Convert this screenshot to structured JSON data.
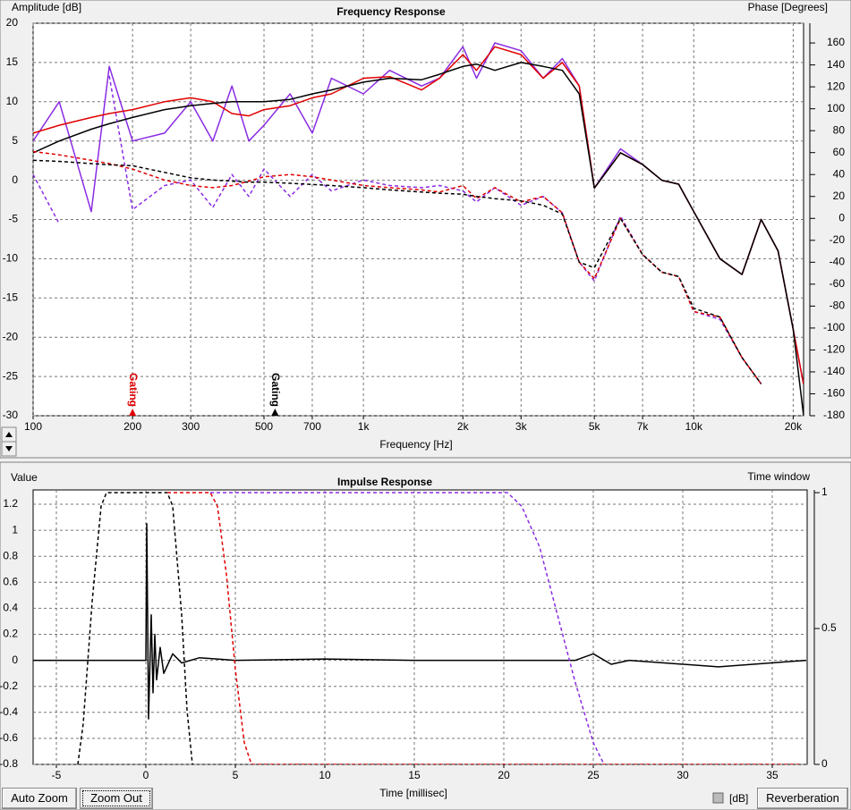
{
  "chart_data": [
    {
      "type": "line",
      "title": "Frequency Response",
      "y_label": "Amplitude [dB]",
      "y2_label": "Phase [Degrees]",
      "x_label": "Frequency [Hz]",
      "xscale": "log",
      "grid": true,
      "x": [
        100,
        120,
        150,
        170,
        200,
        250,
        300,
        350,
        400,
        450,
        500,
        600,
        700,
        800,
        1000,
        1200,
        1500,
        1700,
        2000,
        2200,
        2500,
        3000,
        3500,
        4000,
        4500,
        5000,
        6000,
        7000,
        8000,
        9000,
        10000,
        12000,
        14000,
        16000,
        18000,
        20000,
        21500
      ],
      "xlim": [
        100,
        21500
      ],
      "xticks": [
        100,
        200,
        300,
        500,
        700,
        {
          "value": 1000,
          "label": "1k"
        },
        {
          "value": 2000,
          "label": "2k"
        },
        {
          "value": 3000,
          "label": "3k"
        },
        {
          "value": 5000,
          "label": "5k"
        },
        {
          "value": 7000,
          "label": "7k"
        },
        {
          "value": 10000,
          "label": "10k"
        },
        {
          "value": 20000,
          "label": "20k"
        }
      ],
      "ylim": [
        -30,
        20
      ],
      "yticks": [
        -30,
        -25,
        -20,
        -15,
        -10,
        -5,
        0,
        5,
        10,
        15,
        20
      ],
      "y2lim": [
        -180,
        178
      ],
      "y2ticks": [
        -180,
        -160,
        -140,
        -120,
        -100,
        -80,
        -60,
        -40,
        -20,
        0,
        20,
        40,
        60,
        80,
        100,
        120,
        140,
        160
      ],
      "series": [
        {
          "color": "#8a2be2",
          "values": [
            5,
            10,
            -4,
            14.5,
            5,
            6,
            10,
            5,
            12,
            5,
            7,
            11,
            6,
            13,
            11,
            14,
            12,
            13,
            17,
            13,
            17.5,
            16.5,
            13,
            15.5,
            12,
            -1,
            4,
            2,
            0,
            -0.5,
            -4,
            -10,
            -12,
            -5,
            -9,
            -19,
            -26
          ]
        },
        {
          "color": "#e00000",
          "values": [
            6,
            7,
            8,
            8.5,
            9,
            10,
            10.5,
            10,
            8.5,
            8.2,
            9,
            9.5,
            10.5,
            11,
            13,
            13.2,
            11.5,
            13,
            16,
            14,
            17,
            16,
            13,
            15,
            12,
            -1,
            3.5,
            2,
            0,
            -0.5,
            -4,
            -10,
            -12,
            -5,
            -9,
            -19,
            -26
          ]
        },
        {
          "color": "#000000",
          "values": [
            3.5,
            5,
            6.5,
            7.2,
            8,
            9,
            9.5,
            9.8,
            10,
            10,
            10,
            10.3,
            11,
            11.5,
            12.5,
            13,
            12.8,
            13.5,
            14.5,
            14.8,
            14,
            15,
            14.5,
            14,
            11,
            -1,
            3.5,
            2,
            0,
            -0.5,
            -4,
            -10,
            -12,
            -5,
            -9,
            -19,
            -30
          ]
        },
        {
          "color": "#8a2be2",
          "axis": "y2",
          "dashed": true,
          "values": [
            40,
            -5,
            null,
            130,
            8,
            30,
            35,
            10,
            40,
            20,
            45,
            20,
            40,
            25,
            35,
            30,
            28,
            30,
            25,
            15,
            28,
            12,
            20,
            5,
            -40,
            -57,
            2,
            -33,
            -49,
            -53,
            -85,
            -92,
            -127,
            -151,
            null,
            null,
            null
          ]
        },
        {
          "color": "#e00000",
          "axis": "y2",
          "dashed": true,
          "values": [
            61,
            58,
            53,
            50,
            45,
            35,
            30,
            28,
            30,
            34,
            38,
            40,
            38,
            35,
            30,
            28,
            26,
            24,
            30,
            18,
            28,
            15,
            20,
            5,
            -40,
            -55,
            0,
            -33,
            -49,
            -53,
            -85,
            -90,
            -127,
            -151,
            null,
            null,
            null
          ]
        },
        {
          "color": "#000000",
          "axis": "y2",
          "dashed": true,
          "values": [
            53,
            52,
            50,
            49,
            48,
            42,
            37,
            35,
            34,
            33,
            33,
            32,
            31,
            30,
            28,
            26,
            24,
            23,
            22,
            20,
            18,
            16,
            12,
            4,
            -40,
            -45,
            0,
            -33,
            -49,
            -53,
            -82,
            -90,
            -127,
            -151,
            null,
            null,
            null
          ]
        }
      ],
      "annotations": [
        {
          "text": "Gating",
          "x": 200,
          "color": "#e00000"
        },
        {
          "text": "Gating",
          "x": 540,
          "color": "#000000"
        }
      ]
    },
    {
      "type": "line",
      "title": "Impulse Response",
      "y_label": "Value",
      "y2_label": "Time window",
      "x_label": "Time [millisec]",
      "grid": true,
      "xlim": [
        -6.3,
        36.95
      ],
      "xticks": [
        -5,
        0,
        5,
        10,
        15,
        20,
        25,
        30,
        35
      ],
      "ylim": [
        -0.8,
        1.31
      ],
      "yticks": [
        -0.8,
        -0.6,
        -0.4,
        -0.2,
        0,
        0.2,
        0.4,
        0.6,
        0.8,
        1,
        1.2
      ],
      "y2lim": [
        0,
        1.01
      ],
      "y2ticks": [
        0,
        0.5,
        1
      ],
      "series": [
        {
          "color": "#000000",
          "x": [
            -6.3,
            0,
            0.05,
            0.15,
            0.3,
            0.4,
            0.5,
            0.6,
            0.8,
            1,
            1.5,
            2,
            3,
            5,
            10,
            15,
            20,
            24,
            25,
            26,
            27,
            32,
            36.9
          ],
          "values": [
            0,
            0,
            1.05,
            -0.45,
            0.35,
            -0.25,
            0.2,
            -0.15,
            0.1,
            -0.1,
            0.05,
            -0.02,
            0.02,
            0,
            0.01,
            0,
            0,
            0,
            0.05,
            -0.03,
            0,
            -0.05,
            0
          ]
        },
        {
          "color": "#000000",
          "axis": "y2",
          "dashed": true,
          "x": [
            -3.8,
            -3.5,
            -3,
            -2.5,
            -2.2,
            1.2,
            1.5,
            2,
            2.3,
            2.6
          ],
          "values": [
            0,
            0.15,
            0.6,
            0.95,
            1,
            1,
            0.95,
            0.55,
            0.2,
            0
          ]
        },
        {
          "color": "#e00000",
          "axis": "y2",
          "dashed": true,
          "x": [
            1.2,
            3.6,
            4,
            4.5,
            5,
            5.5,
            5.9,
            36.5
          ],
          "values": [
            1,
            1,
            0.95,
            0.7,
            0.35,
            0.08,
            0,
            0
          ]
        },
        {
          "color": "#8a2be2",
          "axis": "y2",
          "dashed": true,
          "x": [
            3.6,
            20.2,
            21,
            22,
            23,
            24,
            25,
            25.6
          ],
          "values": [
            1,
            1,
            0.95,
            0.8,
            0.55,
            0.3,
            0.08,
            0
          ]
        }
      ]
    }
  ],
  "ui": {
    "buttons": [
      "Auto Zoom",
      "Zoom Out",
      "Reverberation"
    ],
    "checkbox_label": "[dB]"
  }
}
